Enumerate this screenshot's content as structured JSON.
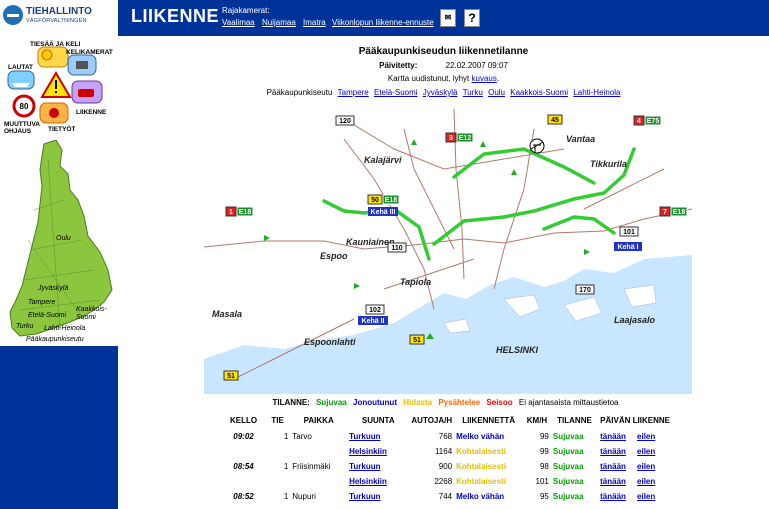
{
  "brand": {
    "name": "TIEHALLINTO",
    "subtitle": "VÄGFÖRVALTNINGEN"
  },
  "nav": {
    "items": [
      {
        "id": "weather",
        "label": "TIESÄÄ JA KELI"
      },
      {
        "id": "cameras",
        "label": "KELIKAMERAT"
      },
      {
        "id": "ferries",
        "label": "LAUTAT"
      },
      {
        "id": "traffic",
        "label": "LIIKENNE"
      },
      {
        "id": "control",
        "label": "MUUTTUVA OHJAUS"
      },
      {
        "id": "roadworks",
        "label": "TIETYÖT"
      }
    ]
  },
  "finland_map": {
    "cities": [
      "Oulu",
      "Jyväskylä",
      "Tampere",
      "Kaakkois-Suomi",
      "Etelä-Suomi",
      "Turku",
      "Lahti-Heinola",
      "Pääkaupunkiseutu"
    ]
  },
  "header": {
    "title": "LIIKENNE",
    "border_cameras_label": "Rajakamerat:",
    "border_cameras": [
      "Vaalimaa",
      "Nuijamaa",
      "Imatra"
    ],
    "forecast_link": "Viikonlopun liikenne-ennuste",
    "help_label": "?"
  },
  "main": {
    "heading": "Pääkaupunkiseudun liikennetilanne",
    "updated_label": "Päivitetty:",
    "updated_value": "22.02.2007 09:07",
    "note_prefix": "Kartta uudistunut, lyhyt",
    "note_link": "kuvaus",
    "note_suffix": ".",
    "regions_label": "Pääkaupunkiseutu",
    "regions": [
      "Tampere",
      "Etelä-Suomi",
      "Jyväskylä",
      "Turku",
      "Oulu",
      "Kaakkois-Suomi",
      "Lahti-Heinola"
    ]
  },
  "map": {
    "places": [
      "Vantaa",
      "Kalajärvi",
      "Tikkurila",
      "Kauniainen",
      "Espoo",
      "Tapiola",
      "Masala",
      "Espoonlahti",
      "Laajasalo",
      "HELSINKI"
    ],
    "road_numbers": [
      "120",
      "110",
      "101",
      "102",
      "170",
      "45",
      "3",
      "4",
      "1",
      "7",
      "50",
      "51",
      "51"
    ],
    "e_roads": [
      "E12",
      "E75",
      "E18",
      "E18",
      "E18"
    ],
    "ring_roads": [
      "Kehä III",
      "Kehä I",
      "Kehä II"
    ]
  },
  "legend": {
    "prefix": "TILANNE:",
    "states": [
      {
        "label": "Sujuvaa",
        "color": "#00a000"
      },
      {
        "label": "Jonoutunut",
        "color": "#0000cc"
      },
      {
        "label": "Hidasta",
        "color": "#e0c000"
      },
      {
        "label": "Pysähtelee",
        "color": "#ff6600"
      },
      {
        "label": "Seisoo",
        "color": "#ff0000"
      }
    ],
    "suffix": "Ei ajantasaista mittaustietoa"
  },
  "table": {
    "headers": [
      "KELLO",
      "TIE",
      "PAIKKA",
      "SUUNTA",
      "AUTOJA/H",
      "LIIKENNETTÄ",
      "KM/H",
      "TILANNE",
      "PÄIVÄN LIIKENNE"
    ],
    "rows": [
      {
        "time": "09:02",
        "road": "1",
        "place": "Tarvo",
        "direction": "Turkuun",
        "cars": "768",
        "flow": "Melko vähän",
        "flow_color": "blue",
        "speed": "99",
        "state": "Sujuvaa",
        "today": "tänään",
        "yesterday": "eilen"
      },
      {
        "time": "",
        "road": "",
        "place": "",
        "direction": "Helsinkiin",
        "cars": "1164",
        "flow": "Kohtalaisesti",
        "flow_color": "yellow",
        "speed": "99",
        "state": "Sujuvaa",
        "today": "tänään",
        "yesterday": "eilen"
      },
      {
        "time": "08:54",
        "road": "1",
        "place": "Friisinmäki",
        "direction": "Turkuun",
        "cars": "900",
        "flow": "Kohtalaisesti",
        "flow_color": "yellow",
        "speed": "98",
        "state": "Sujuvaa",
        "today": "tänään",
        "yesterday": "eilen"
      },
      {
        "time": "",
        "road": "",
        "place": "",
        "direction": "Helsinkiin",
        "cars": "2268",
        "flow": "Kohtalaisesti",
        "flow_color": "yellow",
        "speed": "101",
        "state": "Sujuvaa",
        "today": "tänään",
        "yesterday": "eilen"
      },
      {
        "time": "08:52",
        "road": "1",
        "place": "Nupuri",
        "direction": "Turkuun",
        "cars": "744",
        "flow": "Melko vähän",
        "flow_color": "blue",
        "speed": "95",
        "state": "Sujuvaa",
        "today": "tänään",
        "yesterday": "eilen"
      }
    ]
  },
  "colors": {
    "header_blue": "#003399",
    "link_blue": "#0000cc",
    "road_green": "#33cc33",
    "sea_blue": "#c8e6ff",
    "land_green": "#8cc63f"
  }
}
